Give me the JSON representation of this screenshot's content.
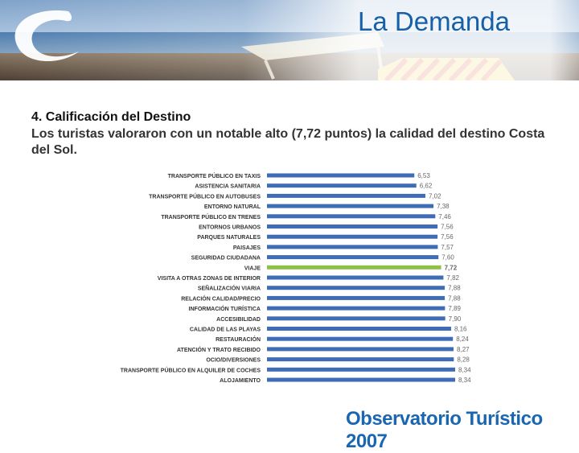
{
  "header": {
    "title": "La Demanda"
  },
  "section": {
    "heading": "4.  Calificación del Destino",
    "text": "Los turistas valoraron con un notable alto (7,72 puntos) la calidad del destino Costa del Sol."
  },
  "footer": {
    "brand": "Observatorio Turístico 2007"
  },
  "colors": {
    "bar": "#3f6db5",
    "highlight": "#8ec04a",
    "title": "#1560a8",
    "brand": "#1a66b1"
  },
  "chart_data": {
    "type": "bar",
    "orientation": "horizontal",
    "title": "",
    "xlabel": "",
    "ylabel": "",
    "xlim": [
      0,
      8.34
    ],
    "highlight": "VIAJE",
    "categories": [
      "TRANSPORTE PÚBLICO EN TAXIS",
      "ASISTENCIA SANITARIA",
      "TRANSPORTE PÚBLICO EN AUTOBUSES",
      "ENTORNO NATURAL",
      "TRANSPORTE PÚBLICO EN TRENES",
      "ENTORNOS URBANOS",
      "PARQUES NATURALES",
      "PAISAJES",
      "SEGURIDAD CIUDADANA",
      "VIAJE",
      "VISITA A OTRAS ZONAS DE INTERIOR",
      "SEÑALIZACIÓN VIARIA",
      "RELACIÓN CALIDAD/PRECIO",
      "INFORMACIÓN TURÍSTICA",
      "ACCESIBILIDAD",
      "CALIDAD DE LAS PLAYAS",
      "RESTAURACIÓN",
      "ATENCIÓN Y TRATO RECIBIDO",
      "OCIO/DIVERSIONES",
      "TRANSPORTE PÚBLICO EN ALQUILER DE COCHES",
      "ALOJAMIENTO"
    ],
    "values": [
      6.53,
      6.62,
      7.02,
      7.38,
      7.46,
      7.56,
      7.56,
      7.57,
      7.6,
      7.72,
      7.82,
      7.88,
      7.88,
      7.89,
      7.9,
      8.16,
      8.24,
      8.27,
      8.28,
      8.34,
      8.34
    ],
    "labels": [
      "6,53",
      "6,62",
      "7,02",
      "7,38",
      "7,46",
      "7,56",
      "7,56",
      "7,57",
      "7,60",
      "7,72",
      "7,82",
      "7,88",
      "7,88",
      "7,89",
      "7,90",
      "8,16",
      "8,24",
      "8,27",
      "8,28",
      "8,34",
      "8,34"
    ]
  }
}
